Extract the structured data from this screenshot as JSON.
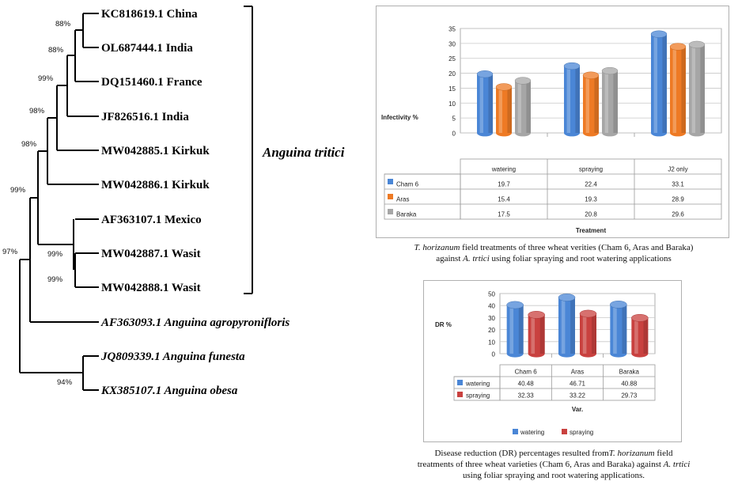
{
  "tree": {
    "taxa": [
      {
        "label": "KC818619.1 China",
        "italic": false
      },
      {
        "label": "OL687444.1 India",
        "italic": false
      },
      {
        "label": "DQ151460.1 France",
        "italic": false
      },
      {
        "label": "JF826516.1 India",
        "italic": false
      },
      {
        "label": "MW042885.1 Kirkuk",
        "italic": false
      },
      {
        "label": "MW042886.1 Kirkuk",
        "italic": false
      },
      {
        "label": "AF363107.1 Mexico",
        "italic": false
      },
      {
        "label": "MW042887.1 Wasit",
        "italic": false
      },
      {
        "label": "MW042888.1 Wasit",
        "italic": false
      },
      {
        "label": "AF363093.1 Anguina agropyronifloris",
        "italic": true
      },
      {
        "label": "JQ809339.1 Anguina funesta",
        "italic": true
      },
      {
        "label": "KX385107.1 Anguina obesa",
        "italic": true
      }
    ],
    "bootstrap": [
      "88%",
      "88%",
      "99%",
      "98%",
      "98%",
      "99%",
      "99%",
      "99%",
      "97%",
      "94%"
    ],
    "group_label": "Anguina tritici"
  },
  "chart_data": [
    {
      "type": "bar",
      "categories": [
        "watering",
        "spraying",
        "J2 only"
      ],
      "series": [
        {
          "name": "Cham 6",
          "values": [
            19.7,
            22.4,
            33.1
          ],
          "color": "#4a86d6"
        },
        {
          "name": "Aras",
          "values": [
            15.4,
            19.3,
            28.9
          ],
          "color": "#ee7a24"
        },
        {
          "name": "Baraka",
          "values": [
            17.5,
            20.8,
            29.6
          ],
          "color": "#a6a6a6"
        }
      ],
      "title": "",
      "xlabel": "Treatment",
      "ylabel": "Infectivity %",
      "ylim": [
        0,
        35
      ],
      "yticks": [
        0,
        5,
        10,
        15,
        20,
        25,
        30,
        35
      ],
      "grid": true,
      "legend": "data-table",
      "table": {
        "header": [
          "watering",
          "spraying",
          "J2 only"
        ],
        "rows": [
          {
            "name": "Cham 6",
            "values": [
              "19.7",
              "22.4",
              "33.1"
            ]
          },
          {
            "name": "Aras",
            "values": [
              "15.4",
              "19.3",
              "28.9"
            ]
          },
          {
            "name": "Baraka",
            "values": [
              "17.5",
              "20.8",
              "29.6"
            ]
          }
        ]
      }
    },
    {
      "type": "bar",
      "categories": [
        "Cham 6",
        "Aras",
        "Baraka"
      ],
      "series": [
        {
          "name": "watering",
          "values": [
            40.48,
            46.71,
            40.88
          ],
          "color": "#4a86d6"
        },
        {
          "name": "spraying",
          "values": [
            32.33,
            33.22,
            29.73
          ],
          "color": "#c9413f"
        }
      ],
      "title": "",
      "xlabel": "Var.",
      "ylabel": "DR %",
      "ylim": [
        0,
        50
      ],
      "yticks": [
        0,
        10,
        20,
        30,
        40,
        50
      ],
      "grid": true,
      "legend": "bottom",
      "table": {
        "header": [
          "Cham 6",
          "Aras",
          "Baraka"
        ],
        "rows": [
          {
            "name": "watering",
            "values": [
              "40.48",
              "46.71",
              "40.88"
            ]
          },
          {
            "name": "spraying",
            "values": [
              "32.33",
              "33.22",
              "29.73"
            ]
          }
        ]
      }
    }
  ],
  "captions": {
    "fig1": {
      "italic_lead": "T. horizanum",
      "text_a": " field treatments of three wheat verities (Cham 6, Aras and Baraka)",
      "text_b": "against ",
      "italic_b": "A. trtici",
      "text_c": " using foliar spraying and root watering applications"
    },
    "fig2": {
      "text_a": "Disease reduction (DR) percentages resulted from",
      "italic_a": "T. horizanum",
      "text_b": " field",
      "text_c": "treatments of three wheat varieties (Cham 6, Aras and Baraka) against ",
      "italic_c": "A. trtici",
      "text_d": "using foliar spraying and root watering applications."
    }
  }
}
